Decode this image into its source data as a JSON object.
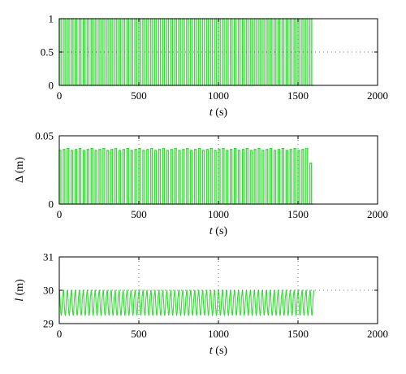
{
  "chart_data": [
    {
      "type": "line",
      "xlabel": "t (s)",
      "ylabel": "",
      "xlim": [
        0,
        2000
      ],
      "ylim": [
        0,
        1
      ],
      "xticks": [
        "0",
        "500",
        "1000",
        "1500",
        "2000"
      ],
      "yticks": [
        "0",
        "0.5",
        "1"
      ],
      "grid": "dotted",
      "series": [
        {
          "color": "#33dd33",
          "signal": "square",
          "x_range": [
            0,
            1600
          ],
          "period_s": 25,
          "low": 0,
          "high": 1
        }
      ]
    },
    {
      "type": "line",
      "xlabel": "t (s)",
      "ylabel": "Δ (m)",
      "xlim": [
        0,
        2000
      ],
      "ylim": [
        0,
        0.05
      ],
      "xticks": [
        "0",
        "500",
        "1000",
        "1500",
        "2000"
      ],
      "yticks": [
        "0",
        "0.05"
      ],
      "grid": "dotted",
      "series": [
        {
          "color": "#33dd33",
          "signal": "spikes",
          "x_range": [
            0,
            1600
          ],
          "period_s": 25,
          "low": 0,
          "high": 0.04,
          "last_value": 0.03
        }
      ]
    },
    {
      "type": "line",
      "xlabel": "t (s)",
      "ylabel": "l (m)",
      "xlim": [
        0,
        2000
      ],
      "ylim": [
        29,
        31
      ],
      "xticks": [
        "0",
        "500",
        "1000",
        "1500",
        "2000"
      ],
      "yticks": [
        "29",
        "30",
        "31"
      ],
      "grid": "dotted",
      "series": [
        {
          "color": "#33dd33",
          "signal": "oscillation",
          "x_range": [
            0,
            1600
          ],
          "period_s": 25,
          "low": 29.25,
          "high": 30.0
        }
      ]
    }
  ]
}
